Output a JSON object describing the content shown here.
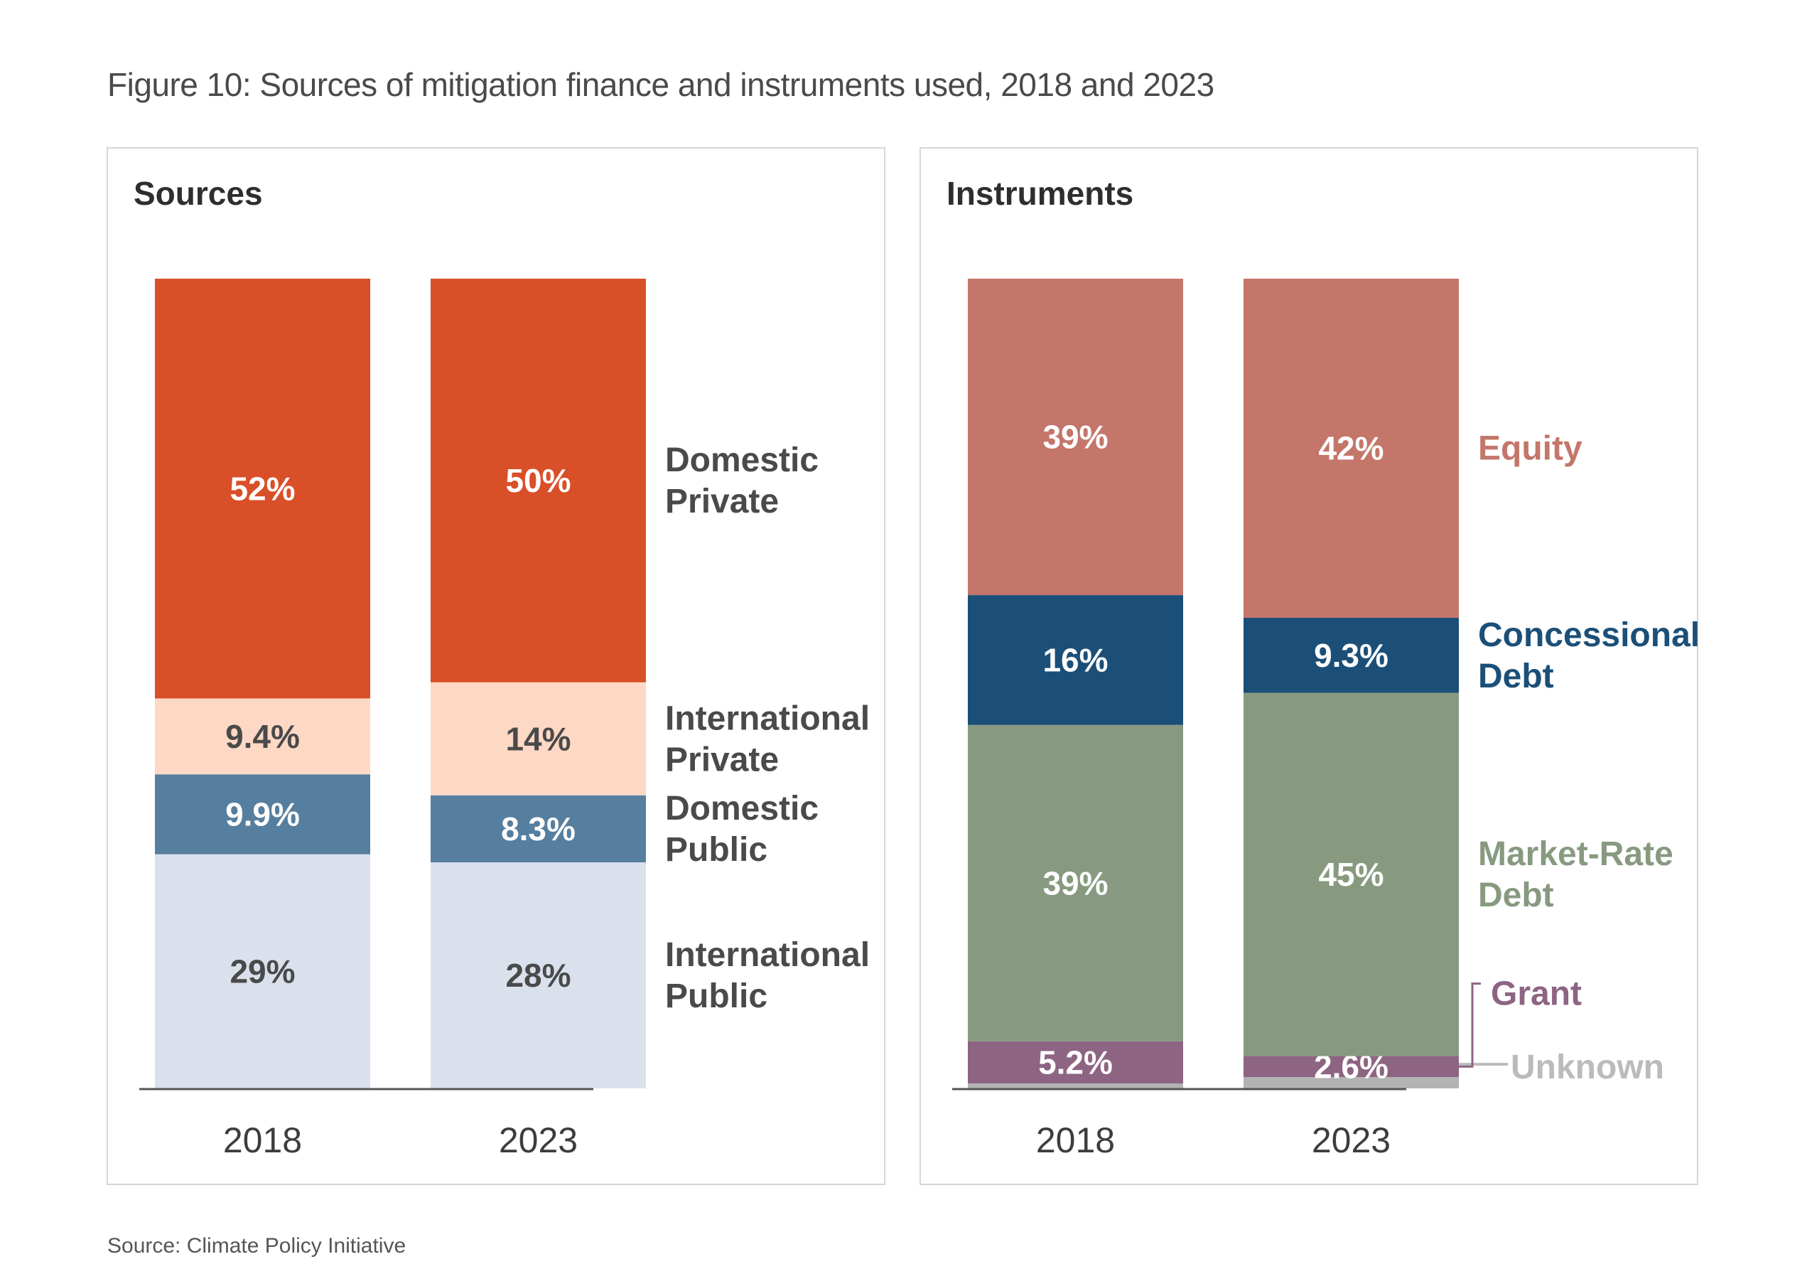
{
  "figure": {
    "title": "Figure 10: Sources of mitigation finance and instruments used, 2018 and 2023",
    "source": "Source: Climate Policy Initiative"
  },
  "chart_data": [
    {
      "type": "bar",
      "stacked": true,
      "title": "Sources",
      "categories": [
        "2018",
        "2023"
      ],
      "unit": "%",
      "series": [
        {
          "name": "International Public",
          "label": "International\nPublic",
          "values": [
            29,
            28
          ],
          "display": [
            "29%",
            "28%"
          ],
          "color": "#DAE1ED",
          "label_color": "#4a4a4a",
          "value_text_color": "#4a4a4a"
        },
        {
          "name": "Domestic Public",
          "label": "Domestic\nPublic",
          "values": [
            9.9,
            8.3
          ],
          "display": [
            "9.9%",
            "8.3%"
          ],
          "color": "#567E9E",
          "label_color": "#4a4a4a",
          "value_text_color": "#ffffff"
        },
        {
          "name": "International Private",
          "label": "International\nPrivate",
          "values": [
            9.4,
            14
          ],
          "display": [
            "9.4%",
            "14%"
          ],
          "color": "#FDD9C5",
          "label_color": "#4a4a4a",
          "value_text_color": "#4a4a4a"
        },
        {
          "name": "Domestic Private",
          "label": "Domestic\nPrivate",
          "values": [
            52,
            50
          ],
          "display": [
            "52%",
            "50%"
          ],
          "color": "#D94F28",
          "label_color": "#4a4a4a",
          "value_text_color": "#ffffff"
        }
      ],
      "legend": "right-of-bars",
      "ylim": [
        0,
        100
      ],
      "grid": false
    },
    {
      "type": "bar",
      "stacked": true,
      "title": "Instruments",
      "categories": [
        "2018",
        "2023"
      ],
      "unit": "%",
      "series": [
        {
          "name": "Unknown",
          "label": "Unknown",
          "values": [
            0.6,
            1.4
          ],
          "display": [
            "",
            ""
          ],
          "color": "#B3B3B3",
          "label_color": "#BBBBBB",
          "value_text_color": "#ffffff"
        },
        {
          "name": "Grant",
          "label": "Grant",
          "values": [
            5.2,
            2.6
          ],
          "display": [
            "5.2%",
            "2.6%"
          ],
          "color": "#8D6482",
          "label_color": "#8D6482",
          "value_text_color": "#ffffff"
        },
        {
          "name": "Market-Rate Debt",
          "label": "Market-Rate\nDebt",
          "values": [
            39,
            45
          ],
          "display": [
            "39%",
            "45%"
          ],
          "color": "#879A80",
          "label_color": "#879A80",
          "value_text_color": "#ffffff"
        },
        {
          "name": "Concessional Debt",
          "label": "Concessional\nDebt",
          "values": [
            16,
            9.3
          ],
          "display": [
            "16%",
            "9.3%"
          ],
          "color": "#1B4F78",
          "label_color": "#1B4F78",
          "value_text_color": "#ffffff"
        },
        {
          "name": "Equity",
          "label": "Equity",
          "values": [
            39,
            42
          ],
          "display": [
            "39%",
            "42%"
          ],
          "color": "#C4766A",
          "label_color": "#C4766A",
          "value_text_color": "#ffffff"
        }
      ],
      "legend": "right-of-bars",
      "ylim": [
        0,
        100
      ],
      "grid": false
    }
  ]
}
